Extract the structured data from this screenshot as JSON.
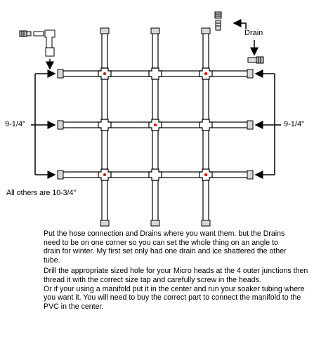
{
  "labels": {
    "drain": "Drain",
    "left_dimension": "9-1/4\"",
    "right_dimension": "9-1/4\"",
    "others": "All others are 10-3/4\""
  },
  "notes": [
    "Put the hose connection and Drains where you want them. but the Drains need to be on one corner so you can set the whole thing on an angle to drain for winter. My first set only had one drain and ice shattered the other tube.",
    "Drill the appropriate sized hole for your Micro heads at the 4 outer junctions then thread it with the correct size tap and carefully screw in the heads.",
    "Or if your using a manifold put it in the center and run your soaker tubing where you want it. You will need to buy the correct part to connect the manifold to the PVC in the center."
  ],
  "colors": {
    "pipe_outline": "#000000",
    "pipe_fill": "#ffffff",
    "cap_fill": "#d8d8d8",
    "junction_dot": "#e00000"
  },
  "icons": [
    "hose-connector-icon",
    "elbow-fitting-icon",
    "drain-valve-icon"
  ]
}
